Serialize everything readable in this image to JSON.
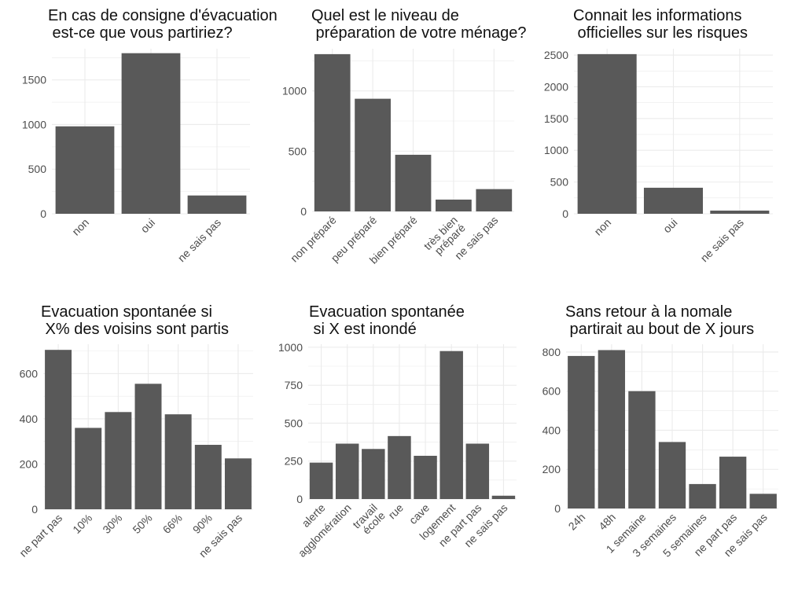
{
  "figure": {
    "background": "#ffffff",
    "bar_color": "#595959",
    "grid_color": "#ebebeb",
    "tick_label_color": "#4d4d4d"
  },
  "chart_data": [
    {
      "type": "bar",
      "title": "En cas de consigne d'évacuation\n est-ce que vous partiriez?",
      "categories": [
        "non",
        "oui",
        "ne sais pas"
      ],
      "values": [
        980,
        1800,
        205
      ],
      "ylim": [
        0,
        1850
      ],
      "yticks": [
        0,
        500,
        1000,
        1500
      ],
      "grid": true
    },
    {
      "type": "bar",
      "title": "Quel est le niveau de\n préparation de votre ménage?",
      "categories": [
        "non préparé",
        "peu préparé",
        "bien préparé",
        "très bien\npréparé",
        "ne sais pas"
      ],
      "values": [
        1305,
        935,
        470,
        98,
        185
      ],
      "ylim": [
        0,
        1350
      ],
      "yticks": [
        0,
        500,
        1000
      ],
      "grid": true
    },
    {
      "type": "bar",
      "title": "Connait les informations\n officielles sur les risques",
      "categories": [
        "non",
        "oui",
        "ne sais pas"
      ],
      "values": [
        2515,
        410,
        50
      ],
      "ylim": [
        0,
        2600
      ],
      "yticks": [
        0,
        500,
        1000,
        1500,
        2000,
        2500
      ],
      "grid": true
    },
    {
      "type": "bar",
      "title": "Evacuation spontanée si\n X% des voisins sont partis",
      "categories": [
        "ne part pas",
        "10%",
        "30%",
        "50%",
        "66%",
        "90%",
        "ne sais pas"
      ],
      "values": [
        705,
        360,
        430,
        555,
        420,
        285,
        225
      ],
      "ylim": [
        0,
        730
      ],
      "yticks": [
        0,
        200,
        400,
        600
      ],
      "grid": true
    },
    {
      "type": "bar",
      "title": "Evacuation spontanée\n si X est inondé",
      "categories": [
        "alerte",
        "agglomération",
        "travail\nécole",
        "rue",
        "cave",
        "logement",
        "ne part pas",
        "ne sais pas"
      ],
      "values": [
        240,
        365,
        330,
        415,
        285,
        975,
        365,
        22
      ],
      "ylim": [
        0,
        1020
      ],
      "yticks": [
        0,
        250,
        500,
        750,
        1000
      ],
      "grid": true
    },
    {
      "type": "bar",
      "title": "Sans retour à la nomale\n partirait au bout de X jours",
      "categories": [
        "24h",
        "48h",
        "1 semaine",
        "3 semaines",
        "5 semaines",
        "ne part pas",
        "ne sais pas"
      ],
      "values": [
        780,
        810,
        600,
        340,
        125,
        265,
        75
      ],
      "ylim": [
        0,
        840
      ],
      "yticks": [
        0,
        200,
        400,
        600,
        800
      ],
      "grid": true
    }
  ]
}
